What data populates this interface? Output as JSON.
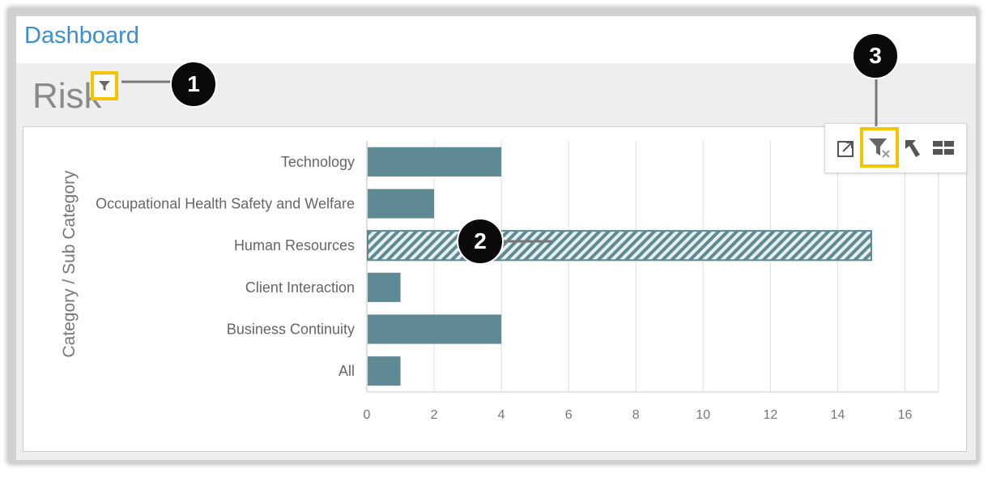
{
  "header": {
    "title": "Dashboard"
  },
  "panel": {
    "title": "Risk"
  },
  "callouts": [
    "1",
    "2",
    "3"
  ],
  "toolbar": {
    "icons": [
      "export-icon",
      "clear-filter-icon",
      "drill-up-icon",
      "layout-icon"
    ]
  },
  "colors": {
    "bar": "#5f8a93",
    "highlight": "#f5c400",
    "grid": "#dddddd",
    "axis_text": "#666666",
    "title_blue": "#3b8fd0"
  },
  "chart_data": {
    "type": "bar",
    "orientation": "horizontal",
    "categories": [
      "Technology",
      "Occupational Health Safety and Welfare",
      "Human Resources",
      "Client Interaction",
      "Business Continuity",
      "All"
    ],
    "values": [
      4,
      2,
      15,
      1,
      4,
      1
    ],
    "selected_category": "Human Resources",
    "ylabel": "Category / Sub Category",
    "xlabel": "",
    "xlim": [
      0,
      17
    ],
    "xticks": [
      0,
      2,
      4,
      6,
      8,
      10,
      12,
      14,
      16
    ],
    "grid": true
  }
}
